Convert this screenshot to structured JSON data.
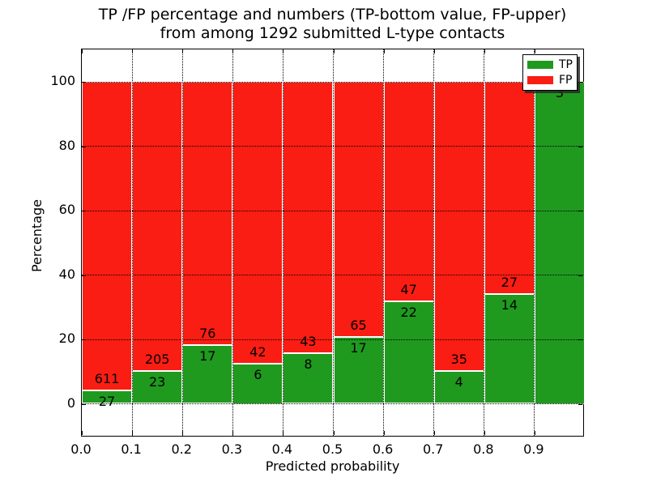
{
  "chart_data": {
    "type": "bar",
    "subtype": "stacked-percentage-histogram",
    "title": "TP /FP percentage and numbers (TP-bottom value, FP-upper) from among 1292 submitted L-type contacts",
    "title_lines": [
      "TP /FP percentage and numbers (TP-bottom value, FP-upper)",
      "from among 1292 submitted L-type contacts"
    ],
    "xlabel": "Predicted probability",
    "ylabel": "Percentage",
    "total_contacts": 1292,
    "xlim": [
      0.0,
      1.0
    ],
    "ylim": [
      -10.5,
      110.5
    ],
    "x_bin_starts": [
      0.0,
      0.1,
      0.2,
      0.3,
      0.4,
      0.5,
      0.6,
      0.7,
      0.8,
      0.9
    ],
    "x_bin_width": 0.1,
    "x_tick_labels": [
      "0.0",
      "0.1",
      "0.2",
      "0.3",
      "0.4",
      "0.5",
      "0.6",
      "0.7",
      "0.8",
      "0.9"
    ],
    "y_ticks": [
      0,
      20,
      40,
      60,
      80,
      100
    ],
    "grid": "dotted-black-both-axes",
    "legend": {
      "position": "upper-right"
    },
    "series": [
      {
        "name": "TP",
        "color": "#1f9a1f",
        "counts": [
          27,
          23,
          17,
          6,
          8,
          17,
          22,
          4,
          14,
          3
        ]
      },
      {
        "name": "FP",
        "color": "#fa1d13",
        "counts": [
          611,
          205,
          76,
          42,
          43,
          65,
          47,
          35,
          27,
          0
        ]
      }
    ],
    "tp_percent_of_bin": [
      4.2,
      10.1,
      18.3,
      12.5,
      15.7,
      20.7,
      31.9,
      10.3,
      34.1,
      100.0
    ],
    "colors": {
      "tp": "#1f9a1f",
      "fp": "#fa1d13",
      "grid": "#000000",
      "background": "#ffffff"
    }
  }
}
